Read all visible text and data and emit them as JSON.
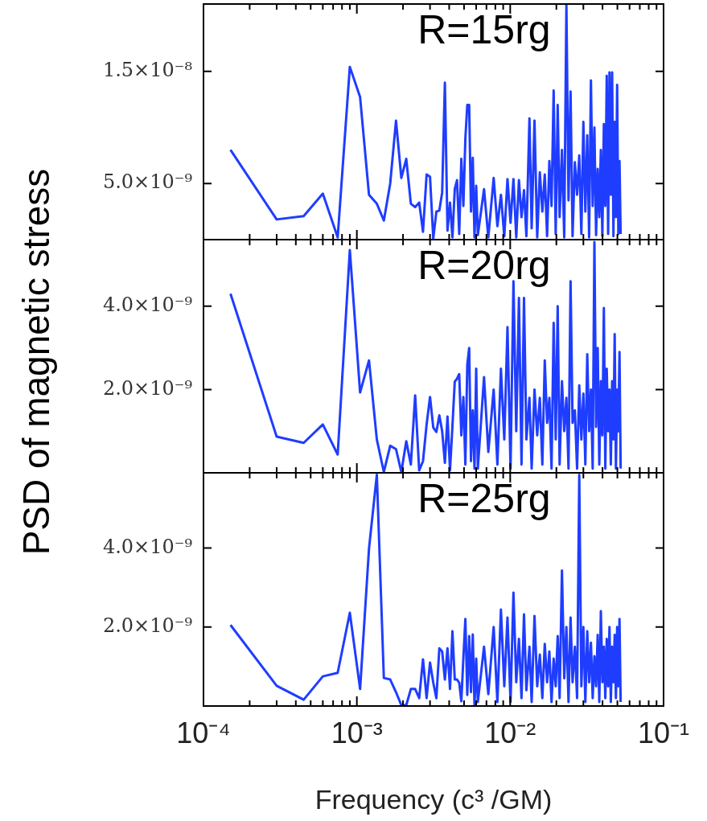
{
  "chart_data": [
    {
      "type": "line",
      "annotations": [
        "R=15rg"
      ],
      "log": "x",
      "tick_labels": "y",
      "x": [
        0.00015,
        0.0003,
        0.00045,
        0.0006,
        0.00075,
        0.0009,
        0.00105,
        0.0012,
        0.00135,
        0.0015,
        0.00165,
        0.0018,
        0.00195,
        0.0021,
        0.00225,
        0.0024,
        0.00255,
        0.0027,
        0.00285,
        0.003,
        0.00315,
        0.0033,
        0.00345,
        0.0036,
        0.00375,
        0.0039,
        0.00405,
        0.0042,
        0.00435,
        0.0045,
        0.00465,
        0.0048,
        0.00495,
        0.0051,
        0.00525,
        0.0054,
        0.00555,
        0.0057,
        0.00585,
        0.006,
        0.00615,
        0.00675,
        0.0072,
        0.0078,
        0.00825,
        0.0087,
        0.00915,
        0.0096,
        0.01005,
        0.0105,
        0.01095,
        0.0114,
        0.01185,
        0.0123,
        0.01275,
        0.01335,
        0.0138,
        0.0144,
        0.015,
        0.0156,
        0.0162,
        0.0168,
        0.0174,
        0.018,
        0.0186,
        0.0192,
        0.0198,
        0.0204,
        0.021,
        0.02175,
        0.0225,
        0.02325,
        0.024,
        0.02475,
        0.0255,
        0.0264,
        0.0273,
        0.0282,
        0.0291,
        0.03,
        0.0309,
        0.0318,
        0.0327,
        0.0336,
        0.0345,
        0.0354,
        0.0363,
        0.0372,
        0.0381,
        0.039,
        0.0399,
        0.0408,
        0.0417,
        0.0426,
        0.0435,
        0.0444,
        0.0453,
        0.0462,
        0.0471,
        0.048,
        0.0489,
        0.0498,
        0.0507,
        0.0516,
        0.0525
      ],
      "series": [
        {
          "color": "#1f3dff",
          "values": [
            8e-09,
            1.8e-09,
            2.1e-09,
            4.1e-09,
            2e-10,
            1.54e-08,
            1.27e-08,
            4e-09,
            3.2e-09,
            1.7e-09,
            5e-09,
            1.06e-08,
            5.5e-09,
            7.2e-09,
            3.2e-09,
            2.9e-09,
            3.3e-09,
            7e-10,
            5.8e-09,
            5.6e-09,
            1e-10,
            2.5e-09,
            2.6e-09,
            4.2e-09,
            1.4e-08,
            8e-10,
            3.3e-09,
            2e-10,
            4.5e-09,
            5.3e-09,
            5e-10,
            7.2e-09,
            3e-09,
            9e-09,
            1.2e-08,
            1.2e-08,
            2.5e-09,
            7.3e-09,
            2e-10,
            4.8e-09,
            4e-10,
            4.5e-09,
            2e-10,
            5.5e-09,
            1.2e-09,
            4e-09,
            3e-10,
            5.4e-09,
            1.5e-09,
            5.4e-09,
            2e-10,
            5.3e-09,
            2e-09,
            4.4e-09,
            3e-10,
            1.08e-08,
            1e-09,
            1.06e-08,
            2e-10,
            6e-09,
            2.5e-09,
            5.8e-09,
            3e-10,
            7e-09,
            3e-09,
            1.33e-08,
            5e-10,
            1.2e-08,
            2e-09,
            8e-09,
            2e-10,
            2.09e-08,
            3.5e-09,
            1.32e-08,
            3e-10,
            6.9e-09,
            4e-09,
            7.5e-09,
            5e-10,
            1.05e-08,
            2.5e-09,
            9.3e-09,
            2e-10,
            1.42e-08,
            3e-09,
            1e-08,
            4e-10,
            6.3e-09,
            2e-09,
            8e-09,
            3e-10,
            1.03e-08,
            3e-09,
            1.46e-08,
            5e-10,
            1.49e-08,
            4e-09,
            1.49e-08,
            3e-10,
            1.05e-08,
            2e-09,
            1.38e-08,
            5e-10,
            7e-09,
            5e-10
          ]
        }
      ],
      "xlim": [
        0.0001,
        0.1
      ],
      "xticks": [
        {
          "value": 0.0001,
          "label": null
        },
        {
          "value": 0.0002,
          "label": null
        },
        {
          "value": 0.0003,
          "label": null
        },
        {
          "value": 0.0004,
          "label": null
        },
        {
          "value": 0.0005,
          "label": null
        },
        {
          "value": 0.0006,
          "label": null
        },
        {
          "value": 0.0007,
          "label": null
        },
        {
          "value": 0.0008,
          "label": null
        },
        {
          "value": 0.0009,
          "label": null
        },
        {
          "value": 0.001,
          "label": null
        },
        {
          "value": 0.002,
          "label": null
        },
        {
          "value": 0.003,
          "label": null
        },
        {
          "value": 0.004,
          "label": null
        },
        {
          "value": 0.005,
          "label": null
        },
        {
          "value": 0.006,
          "label": null
        },
        {
          "value": 0.007,
          "label": null
        },
        {
          "value": 0.008,
          "label": null
        },
        {
          "value": 0.009,
          "label": null
        },
        {
          "value": 0.01,
          "label": null
        },
        {
          "value": 0.02,
          "label": null
        },
        {
          "value": 0.03,
          "label": null
        },
        {
          "value": 0.04,
          "label": null
        },
        {
          "value": 0.05,
          "label": null
        },
        {
          "value": 0.06,
          "label": null
        },
        {
          "value": 0.07,
          "label": null
        },
        {
          "value": 0.08,
          "label": null
        },
        {
          "value": 0.09,
          "label": null
        },
        {
          "value": 0.1,
          "label": null
        }
      ],
      "ylim": [
        0,
        2.1e-08
      ],
      "yticks": [
        {
          "value": 5e-09,
          "label": "5.0×10⁻⁹"
        },
        {
          "value": 1.5e-08,
          "label": "1.5×10⁻⁸"
        }
      ]
    },
    {
      "type": "line",
      "annotations": [
        "R=20rg"
      ],
      "log": "x",
      "tick_labels": "y",
      "ylabel": "PSD of magnetic stress",
      "x": [
        0.00015,
        0.0003,
        0.00045,
        0.0006,
        0.00075,
        0.0009,
        0.00105,
        0.0012,
        0.00135,
        0.0015,
        0.00165,
        0.0018,
        0.00195,
        0.0021,
        0.00225,
        0.0024,
        0.00255,
        0.0027,
        0.00285,
        0.003,
        0.00315,
        0.0033,
        0.00345,
        0.0036,
        0.00375,
        0.0039,
        0.00405,
        0.0042,
        0.00435,
        0.0045,
        0.00465,
        0.0048,
        0.00495,
        0.0051,
        0.00525,
        0.0054,
        0.00555,
        0.0057,
        0.00585,
        0.006,
        0.00615,
        0.00675,
        0.0072,
        0.0078,
        0.00825,
        0.0087,
        0.00915,
        0.0096,
        0.01005,
        0.0105,
        0.01095,
        0.0114,
        0.01185,
        0.0123,
        0.01275,
        0.01335,
        0.0138,
        0.0144,
        0.015,
        0.0156,
        0.0162,
        0.0168,
        0.0174,
        0.018,
        0.0186,
        0.0192,
        0.0198,
        0.0204,
        0.021,
        0.02175,
        0.0225,
        0.02325,
        0.024,
        0.02475,
        0.0255,
        0.0264,
        0.0273,
        0.0282,
        0.0291,
        0.03,
        0.0309,
        0.0318,
        0.0327,
        0.0336,
        0.0345,
        0.0354,
        0.0363,
        0.0372,
        0.0381,
        0.039,
        0.0399,
        0.0408,
        0.0417,
        0.0426,
        0.0435,
        0.0444,
        0.0453,
        0.0462,
        0.0471,
        0.048,
        0.0489,
        0.0498,
        0.0507,
        0.0516,
        0.0525
      ],
      "series": [
        {
          "color": "#1f3dff",
          "values": [
            4.3e-09,
            8.7e-10,
            7.2e-10,
            1.16e-09,
            4.4e-10,
            5.35e-09,
            1.93e-09,
            2.7e-09,
            8e-10,
            2e-11,
            6.5e-10,
            5.7e-10,
            2e-11,
            7.6e-10,
            2e-10,
            1.86e-09,
            6e-11,
            2.8e-10,
            1.16e-09,
            1.82e-09,
            1.09e-09,
            9.8e-10,
            1.38e-09,
            1e-09,
            2.4e-10,
            1.35e-09,
            6e-11,
            1.12e-09,
            2.19e-09,
            2.26e-09,
            2.37e-09,
            9e-10,
            1.82e-09,
            2e-10,
            2.6e-09,
            3e-09,
            2.8e-10,
            1.5e-09,
            1e-10,
            2.5e-09,
            1e-10,
            2.3e-09,
            5e-10,
            2e-09,
            2e-10,
            2.5e-09,
            8e-10,
            3.5e-09,
            1e-10,
            4.6e-09,
            1e-09,
            4.2e-09,
            2e-10,
            4.2e-09,
            8e-10,
            1.8e-09,
            1e-10,
            2e-09,
            9e-10,
            1.8e-09,
            2e-10,
            2.7e-09,
            1.2e-09,
            1.8e-09,
            1e-10,
            3.6e-09,
            8e-10,
            4e-09,
            2e-10,
            2.2e-09,
            1e-09,
            1.8e-09,
            1e-10,
            4.6e-09,
            1.2e-09,
            1.5e-09,
            1e-10,
            2.1e-09,
            8e-10,
            1.9e-09,
            2e-10,
            2.85e-09,
            1e-09,
            2e-09,
            1e-10,
            5.54e-09,
            1.1e-09,
            3e-09,
            2e-10,
            2.2e-09,
            9e-10,
            3.96e-09,
            1e-10,
            2.5e-09,
            1e-09,
            2e-09,
            2e-10,
            2.2e-09,
            8e-10,
            3.33e-09,
            1e-10,
            2e-09,
            1e-09,
            2.9e-09,
            1e-10
          ]
        }
      ],
      "xlim": [
        0.0001,
        0.1
      ],
      "xticks": [
        {
          "value": 0.0001,
          "label": null
        },
        {
          "value": 0.0002,
          "label": null
        },
        {
          "value": 0.0003,
          "label": null
        },
        {
          "value": 0.0004,
          "label": null
        },
        {
          "value": 0.0005,
          "label": null
        },
        {
          "value": 0.0006,
          "label": null
        },
        {
          "value": 0.0007,
          "label": null
        },
        {
          "value": 0.0008,
          "label": null
        },
        {
          "value": 0.0009,
          "label": null
        },
        {
          "value": 0.001,
          "label": null
        },
        {
          "value": 0.002,
          "label": null
        },
        {
          "value": 0.003,
          "label": null
        },
        {
          "value": 0.004,
          "label": null
        },
        {
          "value": 0.005,
          "label": null
        },
        {
          "value": 0.006,
          "label": null
        },
        {
          "value": 0.007,
          "label": null
        },
        {
          "value": 0.008,
          "label": null
        },
        {
          "value": 0.009,
          "label": null
        },
        {
          "value": 0.01,
          "label": null
        },
        {
          "value": 0.02,
          "label": null
        },
        {
          "value": 0.03,
          "label": null
        },
        {
          "value": 0.04,
          "label": null
        },
        {
          "value": 0.05,
          "label": null
        },
        {
          "value": 0.06,
          "label": null
        },
        {
          "value": 0.07,
          "label": null
        },
        {
          "value": 0.08,
          "label": null
        },
        {
          "value": 0.09,
          "label": null
        },
        {
          "value": 0.1,
          "label": null
        }
      ],
      "ylim": [
        0,
        5.6e-09
      ],
      "yticks": [
        {
          "value": 2e-09,
          "label": "2.0×10⁻⁹"
        },
        {
          "value": 4e-09,
          "label": "4.0×10⁻⁹"
        }
      ]
    },
    {
      "type": "line",
      "annotations": [
        "R=25rg"
      ],
      "log": "x",
      "xlabel": "Frequency (c³ /GM)",
      "x": [
        0.00015,
        0.0003,
        0.00045,
        0.0006,
        0.00075,
        0.0009,
        0.00105,
        0.0012,
        0.00135,
        0.0015,
        0.00165,
        0.0018,
        0.00195,
        0.0021,
        0.00225,
        0.0024,
        0.00255,
        0.0027,
        0.00285,
        0.003,
        0.00315,
        0.0033,
        0.00345,
        0.0036,
        0.00375,
        0.0039,
        0.00405,
        0.0042,
        0.00435,
        0.0045,
        0.00465,
        0.0048,
        0.00495,
        0.0051,
        0.00525,
        0.0054,
        0.00555,
        0.0057,
        0.00585,
        0.006,
        0.00615,
        0.00675,
        0.0072,
        0.0078,
        0.00825,
        0.0087,
        0.00915,
        0.0096,
        0.01005,
        0.0105,
        0.01095,
        0.0114,
        0.01185,
        0.0123,
        0.01275,
        0.01335,
        0.0138,
        0.0144,
        0.015,
        0.0156,
        0.0162,
        0.0168,
        0.0174,
        0.018,
        0.0186,
        0.0192,
        0.0198,
        0.0204,
        0.021,
        0.02175,
        0.0225,
        0.02325,
        0.024,
        0.02475,
        0.0255,
        0.0264,
        0.0273,
        0.0282,
        0.0291,
        0.03,
        0.0309,
        0.0318,
        0.0327,
        0.0336,
        0.0345,
        0.0354,
        0.0363,
        0.0372,
        0.0381,
        0.039,
        0.0399,
        0.0408,
        0.0417,
        0.0426,
        0.0435,
        0.0444,
        0.0453,
        0.0462,
        0.0471,
        0.048,
        0.0489,
        0.0498,
        0.0507,
        0.0516,
        0.0525
      ],
      "series": [
        {
          "color": "#1f3dff",
          "values": [
            2.05e-09,
            5.1e-10,
            1.6e-10,
            7.5e-10,
            8.4e-10,
            2.36e-09,
            4.3e-10,
            3.98e-09,
            5.85e-09,
            7.1e-10,
            6.7e-10,
            3.5e-10,
            2e-11,
            2e-11,
            4.3e-10,
            4.3e-10,
            2e-10,
            1.18e-09,
            2e-10,
            1.1e-09,
            5.9e-10,
            2e-10,
            1.46e-09,
            1.38e-09,
            6.7e-10,
            1.46e-09,
            4.3e-10,
            1.89e-09,
            6.7e-10,
            6.7e-10,
            5.9e-10,
            1.2e-10,
            1.22e-09,
            2.2e-09,
            2.8e-10,
            1.77e-09,
            3.5e-10,
            1.81e-09,
            2e-11,
            1.2e-09,
            1e-10,
            1.5e-09,
            3e-10,
            2e-09,
            1e-10,
            2.44e-09,
            5e-10,
            2.24e-09,
            1e-10,
            2.87e-09,
            6e-10,
            1.7e-09,
            2e-10,
            2.32e-09,
            4e-10,
            1.5e-09,
            1e-10,
            2.28e-09,
            5e-10,
            1.3e-09,
            2e-10,
            1.57e-09,
            6e-10,
            1.38e-09,
            1e-10,
            1.2e-09,
            5e-10,
            1.77e-09,
            2e-10,
            3.43e-09,
            7e-10,
            2e-09,
            1e-10,
            2.24e-09,
            6e-10,
            1.5e-09,
            2e-10,
            5.85e-09,
            5e-10,
            2e-09,
            1e-10,
            1.89e-09,
            6e-10,
            1.6e-09,
            2e-10,
            1.26e-09,
            5e-10,
            1.8e-09,
            1e-10,
            2.4e-09,
            6e-10,
            1.5e-09,
            2e-10,
            1.7e-09,
            5e-10,
            2e-09,
            1e-10,
            1.5e-09,
            6e-10,
            1.8e-09,
            2e-10,
            2e-09,
            5e-10,
            2.2e-09,
            1e-10
          ]
        }
      ],
      "xlim": [
        0.0001,
        0.1
      ],
      "xticks": [
        {
          "value": 0.0001,
          "label": "10⁻⁴"
        },
        {
          "value": 0.0002,
          "label": null
        },
        {
          "value": 0.0003,
          "label": null
        },
        {
          "value": 0.0004,
          "label": null
        },
        {
          "value": 0.0005,
          "label": null
        },
        {
          "value": 0.0006,
          "label": null
        },
        {
          "value": 0.0007,
          "label": null
        },
        {
          "value": 0.0008,
          "label": null
        },
        {
          "value": 0.0009,
          "label": null
        },
        {
          "value": 0.001,
          "label": "10⁻³"
        },
        {
          "value": 0.002,
          "label": null
        },
        {
          "value": 0.003,
          "label": null
        },
        {
          "value": 0.004,
          "label": null
        },
        {
          "value": 0.005,
          "label": null
        },
        {
          "value": 0.006,
          "label": null
        },
        {
          "value": 0.007,
          "label": null
        },
        {
          "value": 0.008,
          "label": null
        },
        {
          "value": 0.009,
          "label": null
        },
        {
          "value": 0.01,
          "label": "10⁻²"
        },
        {
          "value": 0.02,
          "label": null
        },
        {
          "value": 0.03,
          "label": null
        },
        {
          "value": 0.04,
          "label": null
        },
        {
          "value": 0.05,
          "label": null
        },
        {
          "value": 0.06,
          "label": null
        },
        {
          "value": 0.07,
          "label": null
        },
        {
          "value": 0.08,
          "label": null
        },
        {
          "value": 0.09,
          "label": null
        },
        {
          "value": 0.1,
          "label": "10⁻¹"
        }
      ],
      "ylim": [
        0,
        5.9e-09
      ],
      "yticks": [
        {
          "value": 2e-09,
          "label": "2.0×10⁻⁹"
        },
        {
          "value": 4e-09,
          "label": "4.0×10⁻⁹"
        }
      ]
    }
  ]
}
